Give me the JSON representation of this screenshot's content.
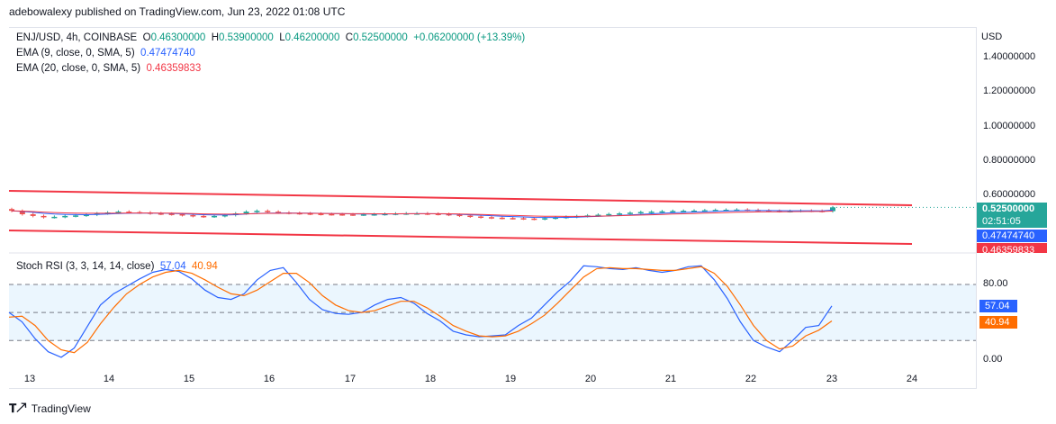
{
  "header": {
    "publish_line": "adebowalexy published on TradingView.com, Jun 23, 2022 01:08 UTC"
  },
  "legend": {
    "symbol": "ENJ/USD, 4h, COINBASE",
    "ohlc": [
      {
        "label": "O",
        "value": "0.46300000"
      },
      {
        "label": "H",
        "value": "0.53900000"
      },
      {
        "label": "L",
        "value": "0.46200000"
      },
      {
        "label": "C",
        "value": "0.52500000"
      }
    ],
    "change": "+0.06200000 (+13.39%)",
    "ema9_label": "EMA (9, close, 0, SMA, 5)",
    "ema9_value": "0.47474740",
    "ema20_label": "EMA (20, close, 0, SMA, 5)",
    "ema20_value": "0.46359833"
  },
  "axis": {
    "currency": "USD",
    "price_ticks": [
      "1.40000000",
      "1.20000000",
      "1.00000000",
      "0.80000000",
      "0.60000000"
    ],
    "x_ticks": [
      "13",
      "14",
      "15",
      "16",
      "17",
      "18",
      "19",
      "20",
      "21",
      "22",
      "23",
      "24"
    ],
    "rsi_ticks": [
      "80.00",
      "0.00"
    ]
  },
  "price_tags": {
    "last": "0.52500000",
    "countdown": "02:51:05",
    "ema9": "0.47474740",
    "ema20": "0.46359833"
  },
  "stoch": {
    "label": "Stoch RSI (3, 3, 14, 14, close)",
    "k": "57.04",
    "d": "40.94"
  },
  "colors": {
    "up": "#26a69a",
    "down": "#ef5350",
    "ema9": "#2962ff",
    "ema20": "#f23645",
    "k": "#2962ff",
    "d": "#ff6d00",
    "channel": "#f23645"
  },
  "footer": {
    "brand": "TradingView"
  },
  "chart_data": [
    {
      "type": "candlestick",
      "title": "ENJ/USD, 4h, COINBASE",
      "ylabel": "USD",
      "ylim": [
        0.41,
        1.5
      ],
      "x_ticks": [
        "13",
        "14",
        "15",
        "16",
        "17",
        "18",
        "19",
        "20",
        "21",
        "22",
        "23",
        "24"
      ],
      "closes": [
        0.505,
        0.485,
        0.475,
        0.468,
        0.47,
        0.475,
        0.478,
        0.482,
        0.49,
        0.495,
        0.5,
        0.497,
        0.495,
        0.49,
        0.488,
        0.485,
        0.48,
        0.475,
        0.472,
        0.475,
        0.48,
        0.49,
        0.5,
        0.505,
        0.5,
        0.495,
        0.492,
        0.49,
        0.488,
        0.486,
        0.485,
        0.484,
        0.483,
        0.484,
        0.485,
        0.487,
        0.489,
        0.49,
        0.49,
        0.488,
        0.486,
        0.482,
        0.477,
        0.472,
        0.468,
        0.465,
        0.463,
        0.462,
        0.46,
        0.458,
        0.462,
        0.466,
        0.47,
        0.474,
        0.478,
        0.482,
        0.486,
        0.49,
        0.494,
        0.498,
        0.5,
        0.502,
        0.504,
        0.505,
        0.506,
        0.508,
        0.51,
        0.511,
        0.512,
        0.51,
        0.508,
        0.505,
        0.503,
        0.504,
        0.506,
        0.505,
        0.503,
        0.525
      ],
      "series": [
        {
          "name": "EMA (9, close, 0, SMA, 5)",
          "last": 0.4747474
        },
        {
          "name": "EMA (20, close, 0, SMA, 5)",
          "last": 0.46359833
        }
      ],
      "last_price": 0.525
    },
    {
      "type": "line",
      "title": "Stoch RSI (3, 3, 14, 14, close)",
      "ylim": [
        -10,
        110
      ],
      "levels": [
        80,
        50,
        20
      ],
      "series": [
        {
          "name": "K",
          "last": 57.04,
          "values": [
            50,
            40,
            22,
            8,
            2,
            12,
            35,
            58,
            70,
            78,
            86,
            93,
            96,
            94,
            86,
            74,
            66,
            64,
            70,
            85,
            95,
            98,
            82,
            64,
            53,
            49,
            48,
            50,
            58,
            64,
            66,
            60,
            49,
            41,
            30,
            26,
            24,
            25,
            26,
            36,
            44,
            58,
            72,
            84,
            100,
            99,
            97,
            96,
            98,
            95,
            93,
            95,
            99,
            100,
            85,
            65,
            40,
            20,
            13,
            8,
            20,
            34,
            36,
            57.04
          ]
        },
        {
          "name": "D",
          "last": 40.94,
          "values": [
            45,
            46,
            36,
            20,
            10,
            7,
            18,
            38,
            55,
            70,
            80,
            88,
            93,
            95,
            92,
            85,
            77,
            70,
            68,
            74,
            83,
            92,
            92,
            82,
            68,
            58,
            52,
            50,
            52,
            57,
            62,
            62,
            55,
            46,
            36,
            30,
            25,
            24,
            25,
            30,
            38,
            47,
            60,
            74,
            88,
            97,
            98,
            97,
            97,
            96,
            95,
            95,
            97,
            99,
            92,
            78,
            58,
            36,
            20,
            11,
            14,
            25,
            31,
            40.94
          ]
        }
      ]
    }
  ]
}
